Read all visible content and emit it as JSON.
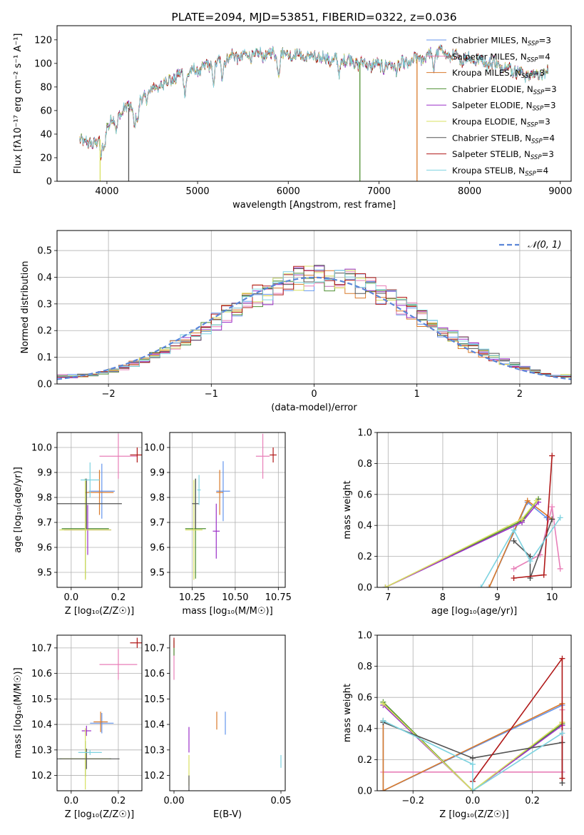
{
  "colors": [
    "#6495ed",
    "#e87fb8",
    "#d97a2b",
    "#4f8f32",
    "#9b30c8",
    "#d8e060",
    "#555555",
    "#b01818",
    "#7dd3e0"
  ],
  "chart_data": [
    {
      "id": "spectrum",
      "type": "line",
      "title": "PLATE=2094, MJD=53851, FIBERID=0322, z=0.036",
      "xlabel": "wavelength [Angstrom, rest frame]",
      "ylabel": "Flux [fλ10⁻¹⁷ erg cm⁻² s⁻¹ A⁻¹]",
      "xlim": [
        3450,
        9120
      ],
      "ylim": [
        0,
        132
      ],
      "xticks": [
        4000,
        5000,
        6000,
        7000,
        8000,
        9000
      ],
      "yticks": [
        0,
        20,
        40,
        60,
        80,
        100,
        120
      ],
      "grid": false,
      "legend_position": "top-right",
      "legend": [
        "Chabrier MILES, N_SSP=3",
        "Salpeter MILES, N_SSP=4",
        "Kroupa MILES, N_SSP=3",
        "Chabrier ELODIE, N_SSP=3",
        "Salpeter ELODIE, N_SSP=3",
        "Kroupa ELODIE, N_SSP=3",
        "Chabrier STELIB, N_SSP=4",
        "Salpeter STELIB, N_SSP=3",
        "Kroupa STELIB, N_SSP=4"
      ],
      "continuum": [
        [
          3700,
          38
        ],
        [
          3800,
          30
        ],
        [
          3900,
          36
        ],
        [
          3950,
          35
        ],
        [
          4000,
          48
        ],
        [
          4100,
          55
        ],
        [
          4200,
          62
        ],
        [
          4300,
          63
        ],
        [
          4400,
          70
        ],
        [
          4500,
          78
        ],
        [
          4600,
          82
        ],
        [
          4700,
          86
        ],
        [
          4800,
          90
        ],
        [
          4900,
          92
        ],
        [
          5000,
          94
        ],
        [
          5100,
          98
        ],
        [
          5200,
          100
        ],
        [
          5300,
          104
        ],
        [
          5400,
          106
        ],
        [
          5500,
          106
        ],
        [
          5600,
          107
        ],
        [
          5700,
          107
        ],
        [
          5800,
          108
        ],
        [
          5900,
          108
        ],
        [
          6000,
          108
        ],
        [
          6100,
          107
        ],
        [
          6200,
          106
        ],
        [
          6300,
          105
        ],
        [
          6400,
          104
        ],
        [
          6500,
          103
        ],
        [
          6600,
          104
        ],
        [
          6700,
          102
        ],
        [
          6800,
          100
        ],
        [
          6900,
          99
        ],
        [
          7000,
          98
        ],
        [
          7100,
          98
        ],
        [
          7200,
          97
        ],
        [
          7300,
          100
        ],
        [
          7400,
          103
        ],
        [
          7500,
          105
        ],
        [
          7600,
          110
        ],
        [
          7700,
          110
        ],
        [
          7800,
          106
        ],
        [
          7900,
          104
        ],
        [
          8000,
          104
        ],
        [
          8100,
          103
        ],
        [
          8200,
          101
        ],
        [
          8300,
          99
        ],
        [
          8400,
          97
        ],
        [
          8500,
          94
        ],
        [
          8600,
          91
        ],
        [
          8700,
          90
        ],
        [
          8800,
          91
        ],
        [
          8870,
          91
        ]
      ],
      "absorption_lines": [
        3934,
        3969,
        4102,
        4305,
        4340,
        4861,
        5175,
        5270,
        5892,
        6563,
        7600
      ],
      "dropouts": [
        {
          "wavelength": 3925,
          "series": 5
        },
        {
          "wavelength": 4240,
          "series": 6
        },
        {
          "wavelength": 6790,
          "series": 3
        },
        {
          "wavelength": 7420,
          "series": 2
        }
      ]
    },
    {
      "id": "residuals",
      "type": "line",
      "xlabel": "(data-model)/error",
      "ylabel": "Normed distribution",
      "xlim": [
        -2.5,
        2.5
      ],
      "ylim": [
        0,
        0.575
      ],
      "xticks": [
        -2,
        -1,
        0,
        1,
        2
      ],
      "yticks": [
        0.0,
        0.1,
        0.2,
        0.3,
        0.4,
        0.5
      ],
      "grid": true,
      "legend_position": "top-right",
      "legend": [
        "𝒩(0, 1)"
      ],
      "bin_width": 0.1,
      "bin_start": -2.5
    },
    {
      "id": "z-age",
      "type": "scatter",
      "xlabel": "Z [log₁₀(Z/Z☉)]",
      "ylabel": "age  [log₁₀(age/yr)]",
      "xlim": [
        -0.06,
        0.3
      ],
      "ylim": [
        9.44,
        10.06
      ],
      "xticks": [
        0.0,
        0.2
      ],
      "yticks": [
        9.5,
        9.6,
        9.7,
        9.8,
        9.9,
        10.0
      ],
      "grid": true,
      "points": [
        {
          "x": 0.13,
          "y": 9.825,
          "xerr": 0.055,
          "yerr": 0.11
        },
        {
          "x": 0.2,
          "y": 9.965,
          "xerr": 0.08,
          "yerr": 0.09
        },
        {
          "x": 0.12,
          "y": 9.82,
          "xerr": 0.06,
          "yerr": 0.09
        },
        {
          "x": 0.06,
          "y": 9.675,
          "xerr": 0.1,
          "yerr": 0.2
        },
        {
          "x": 0.07,
          "y": 9.67,
          "xerr": 0.1,
          "yerr": 0.1
        },
        {
          "x": 0.06,
          "y": 9.67,
          "xerr": 0.11,
          "yerr": 0.2
        },
        {
          "x": 0.065,
          "y": 9.775,
          "xerr": 0.15,
          "yerr": 0.1
        },
        {
          "x": 0.28,
          "y": 9.97,
          "xerr": 0.03,
          "yerr": 0.03
        },
        {
          "x": 0.08,
          "y": 9.87,
          "xerr": 0.04,
          "yerr": 0.07
        }
      ]
    },
    {
      "id": "mass-age",
      "type": "scatter",
      "xlabel": "mass [log₁₀(M/M☉)]",
      "ylabel": "",
      "xlim": [
        10.12,
        10.79
      ],
      "ylim": [
        9.44,
        10.06
      ],
      "xticks": [
        10.25,
        10.5,
        10.75
      ],
      "yticks": [
        9.5,
        9.6,
        9.7,
        9.8,
        9.9,
        10.0
      ],
      "grid": true,
      "points": [
        {
          "x": 10.43,
          "y": 9.825,
          "xerr": 0.04,
          "yerr": 0.12
        },
        {
          "x": 10.66,
          "y": 9.965,
          "xerr": 0.04,
          "yerr": 0.09
        },
        {
          "x": 10.41,
          "y": 9.82,
          "xerr": 0.02,
          "yerr": 0.09
        },
        {
          "x": 10.27,
          "y": 9.675,
          "xerr": 0.06,
          "yerr": 0.2
        },
        {
          "x": 10.39,
          "y": 9.665,
          "xerr": 0.02,
          "yerr": 0.11
        },
        {
          "x": 10.26,
          "y": 9.67,
          "xerr": 0.05,
          "yerr": 0.2
        },
        {
          "x": 10.27,
          "y": 9.775,
          "xerr": 0.02,
          "yerr": 0.1
        },
        {
          "x": 10.72,
          "y": 9.97,
          "xerr": 0.02,
          "yerr": 0.03
        },
        {
          "x": 10.29,
          "y": 9.83,
          "xerr": 0.01,
          "yerr": 0.06
        }
      ]
    },
    {
      "id": "age-weight",
      "type": "line",
      "xlabel": "age  [log₁₀(age/yr)]",
      "ylabel": "mass weight",
      "xlim": [
        6.8,
        10.35
      ],
      "ylim": [
        0,
        1.0
      ],
      "xticks": [
        7,
        8,
        9,
        10
      ],
      "yticks": [
        0.0,
        0.2,
        0.4,
        0.6,
        0.8,
        1.0
      ],
      "grid": true,
      "series": [
        {
          "x": [
            8.85,
            9.55,
            9.9
          ],
          "y": [
            0.0,
            0.55,
            0.45
          ]
        },
        {
          "x": [
            9.3,
            9.78,
            10.0,
            10.15
          ],
          "y": [
            0.12,
            0.21,
            0.52,
            0.12
          ]
        },
        {
          "x": [
            8.85,
            9.55,
            10.0
          ],
          "y": [
            0.0,
            0.56,
            0.44
          ]
        },
        {
          "x": [
            6.95,
            9.45,
            9.75
          ],
          "y": [
            0.0,
            0.43,
            0.57
          ]
        },
        {
          "x": [
            6.95,
            9.45,
            9.75
          ],
          "y": [
            0.0,
            0.42,
            0.55
          ]
        },
        {
          "x": [
            6.95,
            9.45,
            9.72
          ],
          "y": [
            0.0,
            0.44,
            0.56
          ]
        },
        {
          "x": [
            9.3,
            9.6,
            9.6,
            10.0
          ],
          "y": [
            0.3,
            0.2,
            0.06,
            0.44
          ]
        },
        {
          "x": [
            9.3,
            9.85,
            10.0
          ],
          "y": [
            0.06,
            0.08,
            0.85
          ]
        },
        {
          "x": [
            8.7,
            9.3,
            9.6,
            10.15
          ],
          "y": [
            0.0,
            0.37,
            0.17,
            0.45
          ]
        }
      ]
    },
    {
      "id": "z-mass",
      "type": "scatter",
      "xlabel": "Z [log₁₀(Z/Z☉)]",
      "ylabel": "mass [log₁₀(M/M☉)]",
      "xlim": [
        -0.06,
        0.3
      ],
      "ylim": [
        10.14,
        10.75
      ],
      "xticks": [
        0.0,
        0.2
      ],
      "yticks": [
        10.2,
        10.3,
        10.4,
        10.5,
        10.6,
        10.7
      ],
      "grid": true,
      "points": [
        {
          "x": 0.13,
          "y": 10.405,
          "xerr": 0.05,
          "yerr": 0.04
        },
        {
          "x": 0.2,
          "y": 10.635,
          "xerr": 0.08,
          "yerr": 0.06
        },
        {
          "x": 0.125,
          "y": 10.41,
          "xerr": 0.03,
          "yerr": 0.04
        },
        {
          "x": 0.06,
          "y": 10.265,
          "xerr": 0.11,
          "yerr": 0.07
        },
        {
          "x": 0.065,
          "y": 10.375,
          "xerr": 0.02,
          "yerr": 0.02
        },
        {
          "x": 0.06,
          "y": 10.265,
          "xerr": 0.1,
          "yerr": 0.12
        },
        {
          "x": 0.065,
          "y": 10.265,
          "xerr": 0.14,
          "yerr": 0.04
        },
        {
          "x": 0.28,
          "y": 10.72,
          "xerr": 0.03,
          "yerr": 0.02
        },
        {
          "x": 0.08,
          "y": 10.29,
          "xerr": 0.05,
          "yerr": 0.01
        }
      ]
    },
    {
      "id": "ebv-mass",
      "type": "scatter",
      "xlabel": "E(B-V)",
      "ylabel": "",
      "xlim": [
        -0.002,
        0.052
      ],
      "ylim": [
        10.14,
        10.75
      ],
      "xticks": [
        0.0,
        0.05
      ],
      "yticks": [
        10.2,
        10.3,
        10.4,
        10.5,
        10.6,
        10.7
      ],
      "grid": false,
      "points": [
        {
          "x": 0.024,
          "y": 10.405,
          "xerr": 0,
          "yerr": 0.045
        },
        {
          "x": 0.0,
          "y": 10.635,
          "xerr": 0,
          "yerr": 0.06
        },
        {
          "x": 0.02,
          "y": 10.415,
          "xerr": 0,
          "yerr": 0.035
        },
        {
          "x": 0.0,
          "y": 10.7,
          "xerr": 0,
          "yerr": 0.03
        },
        {
          "x": 0.007,
          "y": 10.34,
          "xerr": 0,
          "yerr": 0.05
        },
        {
          "x": 0.007,
          "y": 10.22,
          "xerr": 0,
          "yerr": 0.06
        },
        {
          "x": 0.007,
          "y": 10.17,
          "xerr": 0,
          "yerr": 0.03
        },
        {
          "x": 0.0,
          "y": 10.72,
          "xerr": 0,
          "yerr": 0.02
        },
        {
          "x": 0.05,
          "y": 10.255,
          "xerr": 0,
          "yerr": 0.025
        }
      ]
    },
    {
      "id": "z-weight",
      "type": "line",
      "xlabel": "Z [log₁₀(Z/Z☉)]",
      "ylabel": "mass weight",
      "xlim": [
        -0.32,
        0.33
      ],
      "ylim": [
        0,
        1.0
      ],
      "xticks": [
        -0.2,
        0.0,
        0.2
      ],
      "yticks": [
        0.0,
        0.2,
        0.4,
        0.6,
        0.8,
        1.0
      ],
      "grid": true,
      "series": [
        {
          "x": [
            -0.3,
            -0.3,
            0.3,
            0.3
          ],
          "y": [
            0.45,
            0.0,
            0.55,
            0.12
          ]
        },
        {
          "x": [
            -0.3,
            0.3,
            0.3
          ],
          "y": [
            0.12,
            0.12,
            0.52
          ]
        },
        {
          "x": [
            -0.3,
            -0.3,
            0.3,
            0.3
          ],
          "y": [
            0.45,
            0.0,
            0.56,
            0.44
          ]
        },
        {
          "x": [
            -0.3,
            0.0,
            0.3
          ],
          "y": [
            0.57,
            0.0,
            0.43
          ]
        },
        {
          "x": [
            -0.3,
            0.0,
            0.3
          ],
          "y": [
            0.55,
            0.0,
            0.42
          ]
        },
        {
          "x": [
            -0.3,
            0.0,
            0.3
          ],
          "y": [
            0.56,
            0.0,
            0.44
          ]
        },
        {
          "x": [
            -0.3,
            0.0,
            0.3,
            0.3
          ],
          "y": [
            0.44,
            0.21,
            0.31,
            0.05
          ]
        },
        {
          "x": [
            0.0,
            0.3,
            0.3
          ],
          "y": [
            0.06,
            0.85,
            0.08
          ]
        },
        {
          "x": [
            -0.3,
            0.0,
            0.0,
            0.3
          ],
          "y": [
            0.45,
            0.17,
            0.0,
            0.37
          ]
        }
      ]
    }
  ]
}
